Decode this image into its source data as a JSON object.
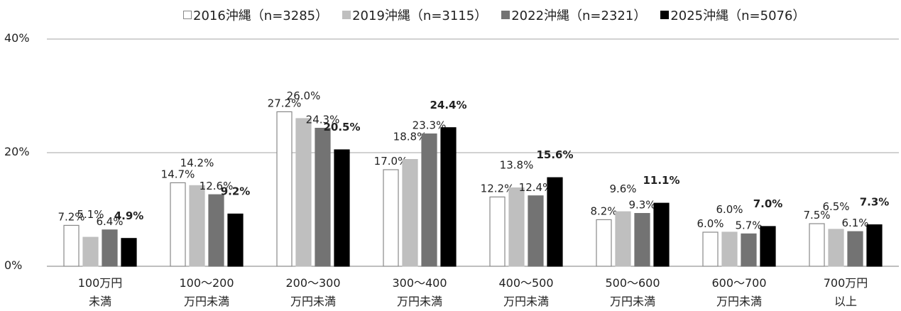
{
  "chart_data": {
    "type": "bar",
    "categories": [
      [
        "100万円",
        "未満"
      ],
      [
        "100～200",
        "万円未満"
      ],
      [
        "200～300",
        "万円未満"
      ],
      [
        "300～400",
        "万円未満"
      ],
      [
        "400～500",
        "万円未満"
      ],
      [
        "500～600",
        "万円未満"
      ],
      [
        "600～700",
        "万円未満"
      ],
      [
        "700万円",
        "以上"
      ]
    ],
    "series": [
      {
        "name": "2016沖縄（n=3285）",
        "color": "#ffffff",
        "stroke": "#888888",
        "values": [
          7.2,
          14.7,
          27.2,
          17.0,
          12.2,
          8.2,
          6.0,
          7.5
        ],
        "labels": [
          "7.2%",
          "14.7%",
          "27.2%",
          "17.0%",
          "12.2%",
          "8.2%",
          "6.0%",
          "7.5%"
        ]
      },
      {
        "name": "2019沖縄（n=3115）",
        "color": "#bfbfbf",
        "stroke": "#bfbfbf",
        "values": [
          5.1,
          14.2,
          26.0,
          18.8,
          13.8,
          9.6,
          6.0,
          6.5
        ],
        "labels": [
          "5.1%",
          "14.2%",
          "26.0%",
          "18.8%",
          "13.8%",
          "9.6%",
          "6.0%",
          "6.5%"
        ]
      },
      {
        "name": "2022沖縄（n=2321）",
        "color": "#737373",
        "stroke": "#737373",
        "values": [
          6.4,
          12.6,
          24.3,
          23.3,
          12.4,
          9.3,
          5.7,
          6.1
        ],
        "labels": [
          "6.4%",
          "12.6%",
          "24.3%",
          "23.3%",
          "12.4%",
          "9.3%",
          "5.7%",
          "6.1%"
        ]
      },
      {
        "name": "2025沖縄（n=5076）",
        "color": "#000000",
        "stroke": "#000000",
        "values": [
          4.9,
          9.2,
          20.5,
          24.4,
          15.6,
          11.1,
          7.0,
          7.3
        ],
        "labels": [
          "4.9%",
          "9.2%",
          "20.5%",
          "24.4%",
          "15.6%",
          "11.1%",
          "7.0%",
          "7.3%"
        ],
        "bold_labels": true
      }
    ],
    "y_ticks": [
      "0%",
      "20%",
      "40%"
    ],
    "ylim": [
      0,
      40
    ],
    "grid": true,
    "legend_position": "top"
  }
}
